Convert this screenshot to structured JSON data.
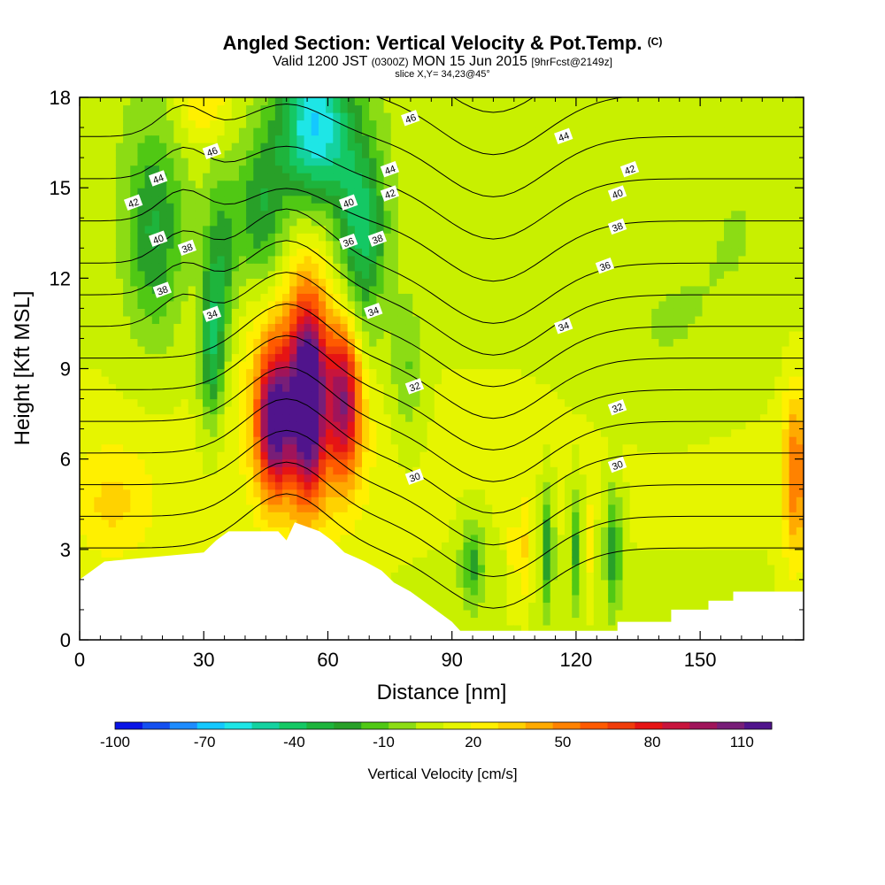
{
  "titles": {
    "main": "Angled Section: Vertical Velocity & Pot.Temp.",
    "main_tag": "(C)",
    "valid_prefix": "Valid 1200 JST",
    "valid_utc": "(0300Z)",
    "valid_date": "MON 15 Jun 2015",
    "forecast": "[9hrFcst@2149z]",
    "slice": "slice X,Y= 34,23@45°"
  },
  "chart_data": {
    "type": "heatmap",
    "xlabel": "Distance [nm]",
    "ylabel": "Height [Kft MSL]",
    "xlim": [
      0,
      175
    ],
    "ylim": [
      0,
      18
    ],
    "x_ticks": [
      0,
      30,
      60,
      90,
      120,
      150
    ],
    "y_ticks": [
      0,
      3,
      6,
      9,
      12,
      15,
      18
    ],
    "colorbar": {
      "label": "Vertical Velocity [cm/s]",
      "tick_labels": [
        -100,
        -70,
        -40,
        -10,
        20,
        50,
        80,
        110
      ],
      "range": [
        -100,
        120
      ],
      "colors": [
        "#0a14e6",
        "#1450f0",
        "#1e8cff",
        "#14c8ff",
        "#1ee6e6",
        "#14d2a0",
        "#14c864",
        "#1eb43c",
        "#28a028",
        "#50c814",
        "#8cdc14",
        "#c8f000",
        "#e6f500",
        "#fff000",
        "#ffd200",
        "#ffaa00",
        "#ff8200",
        "#ff5a00",
        "#f03c0a",
        "#e61414",
        "#c8143c",
        "#a0145a",
        "#781e78",
        "#50148c"
      ]
    },
    "contour_variable": "Potential Temperature (C)",
    "contour_labels": [
      {
        "value": 46,
        "x": 32,
        "y": 16.2
      },
      {
        "value": 46,
        "x": 80,
        "y": 17.3
      },
      {
        "value": 44,
        "x": 19,
        "y": 15.3
      },
      {
        "value": 44,
        "x": 75,
        "y": 15.6
      },
      {
        "value": 44,
        "x": 117,
        "y": 16.7
      },
      {
        "value": 42,
        "x": 13,
        "y": 14.5
      },
      {
        "value": 42,
        "x": 75,
        "y": 14.8
      },
      {
        "value": 42,
        "x": 133,
        "y": 15.6
      },
      {
        "value": 40,
        "x": 19,
        "y": 13.3
      },
      {
        "value": 40,
        "x": 65,
        "y": 14.5
      },
      {
        "value": 40,
        "x": 130,
        "y": 14.8
      },
      {
        "value": 38,
        "x": 26,
        "y": 13.0
      },
      {
        "value": 38,
        "x": 72,
        "y": 13.3
      },
      {
        "value": 38,
        "x": 130,
        "y": 13.7
      },
      {
        "value": 38,
        "x": 20,
        "y": 11.6
      },
      {
        "value": 36,
        "x": 65,
        "y": 13.2
      },
      {
        "value": 36,
        "x": 127,
        "y": 12.4
      },
      {
        "value": 34,
        "x": 32,
        "y": 10.8
      },
      {
        "value": 34,
        "x": 71,
        "y": 10.9
      },
      {
        "value": 34,
        "x": 117,
        "y": 10.4
      },
      {
        "value": 32,
        "x": 81,
        "y": 8.4
      },
      {
        "value": 32,
        "x": 130,
        "y": 7.7
      },
      {
        "value": 30,
        "x": 81,
        "y": 5.4
      },
      {
        "value": 30,
        "x": 130,
        "y": 5.8
      }
    ],
    "contour_levels": [
      29,
      30,
      31,
      32,
      33,
      34,
      35,
      36,
      37,
      38,
      39,
      40,
      41,
      42,
      43,
      44,
      45,
      46
    ],
    "terrain_profile": [
      [
        0,
        2.0
      ],
      [
        3,
        2.3
      ],
      [
        6,
        2.6
      ],
      [
        30,
        2.9
      ],
      [
        33,
        3.3
      ],
      [
        36,
        3.6
      ],
      [
        48,
        3.6
      ],
      [
        50,
        3.3
      ],
      [
        52,
        3.9
      ],
      [
        58,
        3.6
      ],
      [
        61,
        3.3
      ],
      [
        64,
        2.9
      ],
      [
        69,
        2.6
      ],
      [
        73,
        2.3
      ],
      [
        76,
        1.9
      ],
      [
        80,
        1.6
      ],
      [
        83,
        1.3
      ],
      [
        86,
        1.0
      ],
      [
        90,
        0.6
      ],
      [
        92,
        0.3
      ],
      [
        130,
        0.3
      ],
      [
        130,
        0.6
      ],
      [
        143,
        0.6
      ],
      [
        143,
        1.0
      ],
      [
        152,
        1.0
      ],
      [
        152,
        1.3
      ],
      [
        158,
        1.3
      ],
      [
        158,
        1.6
      ],
      [
        175,
        1.6
      ]
    ]
  }
}
